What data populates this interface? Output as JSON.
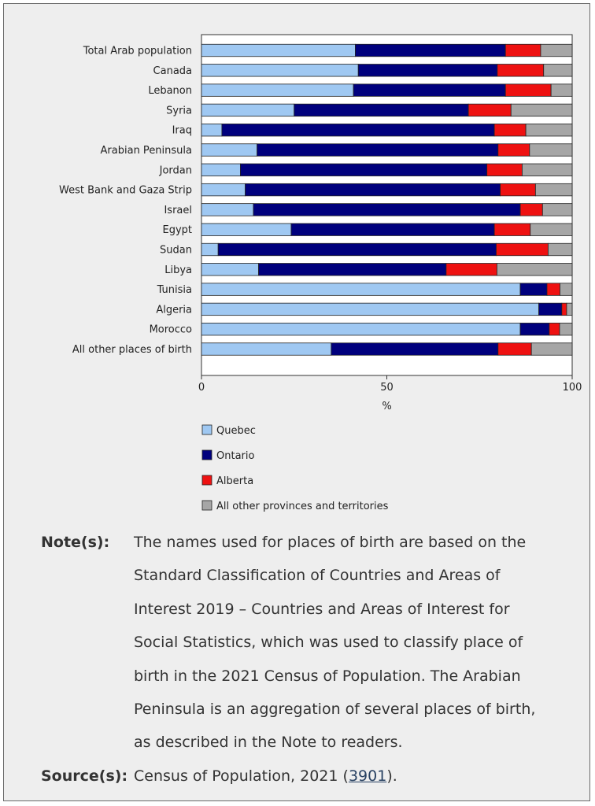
{
  "chart_data": {
    "type": "bar",
    "stacked": true,
    "orientation": "horizontal",
    "categories": [
      "Total Arab population",
      "Canada",
      "Lebanon",
      "Syria",
      "Iraq",
      "Arabian Peninsula",
      "Jordan",
      "West Bank and Gaza Strip",
      "Israel",
      "Egypt",
      "Sudan",
      "Libya",
      "Tunisia",
      "Algeria",
      "Morocco",
      "All other places of birth"
    ],
    "series": [
      {
        "name": "Quebec",
        "color": "#9fc8f2",
        "values": [
          41.5,
          42.3,
          41.0,
          25.0,
          5.5,
          15.0,
          10.5,
          11.8,
          14.0,
          24.2,
          4.5,
          15.4,
          86.0,
          91.0,
          86.0,
          35.0
        ]
      },
      {
        "name": "Ontario",
        "color": "#00007d",
        "values": [
          40.5,
          37.5,
          41.0,
          47.0,
          73.5,
          65.0,
          66.5,
          68.8,
          72.0,
          54.8,
          75.0,
          50.6,
          7.2,
          6.2,
          7.8,
          45.0
        ]
      },
      {
        "name": "Alberta",
        "color": "#ee1111",
        "values": [
          9.5,
          12.5,
          12.3,
          11.5,
          8.5,
          8.5,
          9.5,
          9.5,
          6.0,
          9.7,
          14.0,
          13.7,
          3.5,
          1.3,
          2.8,
          9.0
        ]
      },
      {
        "name": "All other provinces and territories",
        "color": "#a6a6a6",
        "values": [
          8.5,
          7.7,
          5.7,
          16.5,
          12.5,
          11.5,
          13.5,
          9.9,
          8.0,
          11.3,
          6.5,
          20.3,
          3.3,
          1.5,
          3.4,
          11.0
        ]
      }
    ],
    "xlabel": "%",
    "ylabel": "",
    "xlim": [
      0,
      100
    ],
    "xticks": [
      "0",
      "50",
      "100"
    ]
  },
  "notes": {
    "note_label": "Note(s):",
    "note_text": "The names used for places of birth are based on the Standard Classification of Countries and Areas of Interest 2019 – Countries and Areas of Interest for Social Statistics, which was used to classify place of birth in the 2021 Census of Population. The Arabian Peninsula is an aggregation of several places of birth, as described in the Note to readers.",
    "source_label": "Source(s):",
    "source_prefix": "Census of Population, 2021 (",
    "source_link": "3901",
    "source_suffix": ")."
  }
}
